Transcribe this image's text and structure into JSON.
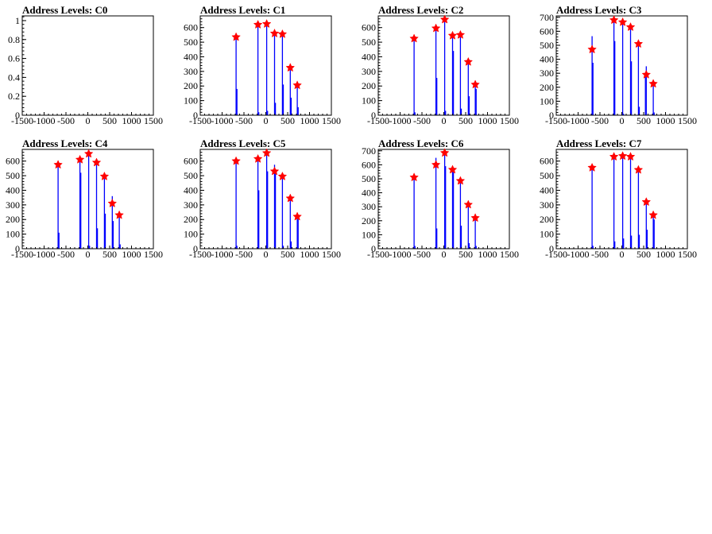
{
  "chart_data": [
    {
      "type": "bar",
      "title": "Address Levels: C0",
      "xlim": [
        -1500,
        1500
      ],
      "ylim": [
        0,
        1.05
      ],
      "x_ticks": [
        -1500,
        -1000,
        -500,
        0,
        500,
        1000,
        1500
      ],
      "x_tick_labels": [
        "-1500",
        "-1000",
        "-500",
        "0",
        "500",
        "1000",
        "1500"
      ],
      "y_ticks": [
        0,
        0.2,
        0.4,
        0.6,
        0.8,
        1
      ],
      "y_tick_labels": [
        "0",
        "0.2",
        "0.4",
        "0.6",
        "0.8",
        "1"
      ],
      "histogram": [],
      "peaks": []
    },
    {
      "type": "bar",
      "title": "Address Levels: C1",
      "xlim": [
        -1500,
        1500
      ],
      "ylim": [
        0,
        680
      ],
      "x_ticks": [
        -1500,
        -1000,
        -500,
        0,
        500,
        1000,
        1500
      ],
      "x_tick_labels": [
        "-1500",
        "-1000",
        "-500",
        "0",
        "500",
        "1000",
        "1500"
      ],
      "y_ticks": [
        0,
        100,
        200,
        300,
        400,
        500,
        600
      ],
      "y_tick_labels": [
        "0",
        "100",
        "200",
        "300",
        "400",
        "500",
        "600"
      ],
      "histogram": [
        {
          "x": -680,
          "y": 540
        },
        {
          "x": -660,
          "y": 180
        },
        {
          "x": -180,
          "y": 620
        },
        {
          "x": -160,
          "y": 20
        },
        {
          "x": 20,
          "y": 625
        },
        {
          "x": 40,
          "y": 30
        },
        {
          "x": 200,
          "y": 560
        },
        {
          "x": 220,
          "y": 85
        },
        {
          "x": 380,
          "y": 560
        },
        {
          "x": 400,
          "y": 210
        },
        {
          "x": 560,
          "y": 330
        },
        {
          "x": 580,
          "y": 120
        },
        {
          "x": 720,
          "y": 210
        },
        {
          "x": 740,
          "y": 55
        }
      ],
      "peaks": [
        {
          "x": -680,
          "y": 535
        },
        {
          "x": -180,
          "y": 620
        },
        {
          "x": 20,
          "y": 625
        },
        {
          "x": 200,
          "y": 560
        },
        {
          "x": 380,
          "y": 555
        },
        {
          "x": 560,
          "y": 325
        },
        {
          "x": 720,
          "y": 205
        }
      ]
    },
    {
      "type": "bar",
      "title": "Address Levels: C2",
      "xlim": [
        -1500,
        1500
      ],
      "ylim": [
        0,
        680
      ],
      "x_ticks": [
        -1500,
        -1000,
        -500,
        0,
        500,
        1000,
        1500
      ],
      "x_tick_labels": [
        "-1500",
        "-1000",
        "-500",
        "0",
        "500",
        "1000",
        "1500"
      ],
      "y_ticks": [
        0,
        100,
        200,
        300,
        400,
        500,
        600
      ],
      "y_tick_labels": [
        "0",
        "100",
        "200",
        "300",
        "400",
        "500",
        "600"
      ],
      "histogram": [
        {
          "x": -680,
          "y": 530
        },
        {
          "x": -660,
          "y": 20
        },
        {
          "x": -180,
          "y": 600
        },
        {
          "x": -160,
          "y": 255
        },
        {
          "x": 20,
          "y": 660
        },
        {
          "x": 40,
          "y": 30
        },
        {
          "x": 200,
          "y": 550
        },
        {
          "x": 220,
          "y": 440
        },
        {
          "x": 380,
          "y": 555
        },
        {
          "x": 400,
          "y": 45
        },
        {
          "x": 560,
          "y": 370
        },
        {
          "x": 580,
          "y": 130
        },
        {
          "x": 720,
          "y": 210
        },
        {
          "x": 740,
          "y": 180
        }
      ],
      "peaks": [
        {
          "x": -680,
          "y": 525
        },
        {
          "x": -180,
          "y": 595
        },
        {
          "x": 20,
          "y": 655
        },
        {
          "x": 200,
          "y": 545
        },
        {
          "x": 380,
          "y": 550
        },
        {
          "x": 560,
          "y": 365
        },
        {
          "x": 720,
          "y": 210
        }
      ]
    },
    {
      "type": "bar",
      "title": "Address Levels: C3",
      "xlim": [
        -1500,
        1500
      ],
      "ylim": [
        0,
        710
      ],
      "x_ticks": [
        -1500,
        -1000,
        -500,
        0,
        500,
        1000,
        1500
      ],
      "x_tick_labels": [
        "-1500",
        "-1000",
        "-500",
        "0",
        "500",
        "1000",
        "1500"
      ],
      "y_ticks": [
        0,
        100,
        200,
        300,
        400,
        500,
        600,
        700
      ],
      "y_tick_labels": [
        "0",
        "100",
        "200",
        "300",
        "400",
        "500",
        "600",
        "700"
      ],
      "histogram": [
        {
          "x": -680,
          "y": 565
        },
        {
          "x": -660,
          "y": 375
        },
        {
          "x": -180,
          "y": 670
        },
        {
          "x": -160,
          "y": 530
        },
        {
          "x": 20,
          "y": 665
        },
        {
          "x": 40,
          "y": 10
        },
        {
          "x": 200,
          "y": 620
        },
        {
          "x": 220,
          "y": 385
        },
        {
          "x": 380,
          "y": 530
        },
        {
          "x": 400,
          "y": 60
        },
        {
          "x": 540,
          "y": 290
        },
        {
          "x": 560,
          "y": 350
        },
        {
          "x": 720,
          "y": 230
        },
        {
          "x": 740,
          "y": 20
        }
      ],
      "peaks": [
        {
          "x": -680,
          "y": 470
        },
        {
          "x": -180,
          "y": 680
        },
        {
          "x": 20,
          "y": 665
        },
        {
          "x": 200,
          "y": 630
        },
        {
          "x": 380,
          "y": 510
        },
        {
          "x": 560,
          "y": 290
        },
        {
          "x": 720,
          "y": 225
        }
      ]
    },
    {
      "type": "bar",
      "title": "Address Levels: C4",
      "xlim": [
        -1500,
        1500
      ],
      "ylim": [
        0,
        680
      ],
      "x_ticks": [
        -1500,
        -1000,
        -500,
        0,
        500,
        1000,
        1500
      ],
      "x_tick_labels": [
        "-1500",
        "-1000",
        "-500",
        "0",
        "500",
        "1000",
        "1500"
      ],
      "y_ticks": [
        0,
        100,
        200,
        300,
        400,
        500,
        600
      ],
      "y_tick_labels": [
        "0",
        "100",
        "200",
        "300",
        "400",
        "500",
        "600"
      ],
      "histogram": [
        {
          "x": -680,
          "y": 570
        },
        {
          "x": -660,
          "y": 110
        },
        {
          "x": -180,
          "y": 620
        },
        {
          "x": -160,
          "y": 520
        },
        {
          "x": 20,
          "y": 650
        },
        {
          "x": 40,
          "y": 20
        },
        {
          "x": 200,
          "y": 580
        },
        {
          "x": 220,
          "y": 140
        },
        {
          "x": 380,
          "y": 490
        },
        {
          "x": 400,
          "y": 240
        },
        {
          "x": 560,
          "y": 360
        },
        {
          "x": 580,
          "y": 190
        },
        {
          "x": 720,
          "y": 220
        },
        {
          "x": 740,
          "y": 30
        }
      ],
      "peaks": [
        {
          "x": -680,
          "y": 575
        },
        {
          "x": -180,
          "y": 610
        },
        {
          "x": 20,
          "y": 650
        },
        {
          "x": 200,
          "y": 590
        },
        {
          "x": 380,
          "y": 495
        },
        {
          "x": 560,
          "y": 310
        },
        {
          "x": 720,
          "y": 230
        }
      ]
    },
    {
      "type": "bar",
      "title": "Address Levels: C5",
      "xlim": [
        -1500,
        1500
      ],
      "ylim": [
        0,
        680
      ],
      "x_ticks": [
        -1500,
        -1000,
        -500,
        0,
        500,
        1000,
        1500
      ],
      "x_tick_labels": [
        "-1500",
        "-1000",
        "-500",
        "0",
        "500",
        "1000",
        "1500"
      ],
      "y_ticks": [
        0,
        100,
        200,
        300,
        400,
        500,
        600
      ],
      "y_tick_labels": [
        "0",
        "100",
        "200",
        "300",
        "400",
        "500",
        "600"
      ],
      "histogram": [
        {
          "x": -680,
          "y": 600
        },
        {
          "x": -660,
          "y": 20
        },
        {
          "x": -180,
          "y": 620
        },
        {
          "x": -160,
          "y": 400
        },
        {
          "x": 20,
          "y": 660
        },
        {
          "x": 40,
          "y": 530
        },
        {
          "x": 200,
          "y": 575
        },
        {
          "x": 220,
          "y": 530
        },
        {
          "x": 380,
          "y": 500
        },
        {
          "x": 400,
          "y": 20
        },
        {
          "x": 560,
          "y": 345
        },
        {
          "x": 580,
          "y": 50
        },
        {
          "x": 720,
          "y": 220
        },
        {
          "x": 740,
          "y": 200
        }
      ],
      "peaks": [
        {
          "x": -680,
          "y": 600
        },
        {
          "x": -180,
          "y": 615
        },
        {
          "x": 20,
          "y": 655
        },
        {
          "x": 200,
          "y": 530
        },
        {
          "x": 380,
          "y": 495
        },
        {
          "x": 560,
          "y": 345
        },
        {
          "x": 720,
          "y": 220
        }
      ]
    },
    {
      "type": "bar",
      "title": "Address Levels: C6",
      "xlim": [
        -1500,
        1500
      ],
      "ylim": [
        0,
        710
      ],
      "x_ticks": [
        -1500,
        -1000,
        -500,
        0,
        500,
        1000,
        1500
      ],
      "x_tick_labels": [
        "-1500",
        "-1000",
        "-500",
        "0",
        "500",
        "1000",
        "1500"
      ],
      "y_ticks": [
        0,
        100,
        200,
        300,
        400,
        500,
        600,
        700
      ],
      "y_tick_labels": [
        "0",
        "100",
        "200",
        "300",
        "400",
        "500",
        "600",
        "700"
      ],
      "histogram": [
        {
          "x": -680,
          "y": 510
        },
        {
          "x": -660,
          "y": 20
        },
        {
          "x": -180,
          "y": 650
        },
        {
          "x": -160,
          "y": 145
        },
        {
          "x": 20,
          "y": 700
        },
        {
          "x": 40,
          "y": 590
        },
        {
          "x": 200,
          "y": 570
        },
        {
          "x": 220,
          "y": 550
        },
        {
          "x": 380,
          "y": 490
        },
        {
          "x": 400,
          "y": 165
        },
        {
          "x": 560,
          "y": 330
        },
        {
          "x": 580,
          "y": 40
        },
        {
          "x": 720,
          "y": 220
        },
        {
          "x": 740,
          "y": 20
        }
      ],
      "peaks": [
        {
          "x": -680,
          "y": 510
        },
        {
          "x": -180,
          "y": 600
        },
        {
          "x": 20,
          "y": 685
        },
        {
          "x": 200,
          "y": 565
        },
        {
          "x": 380,
          "y": 485
        },
        {
          "x": 560,
          "y": 315
        },
        {
          "x": 720,
          "y": 220
        }
      ]
    },
    {
      "type": "bar",
      "title": "Address Levels: C7",
      "xlim": [
        -1500,
        1500
      ],
      "ylim": [
        0,
        680
      ],
      "x_ticks": [
        -1500,
        -1000,
        -500,
        0,
        500,
        1000,
        1500
      ],
      "x_tick_labels": [
        "-1500",
        "-1000",
        "-500",
        "0",
        "500",
        "1000",
        "1500"
      ],
      "y_ticks": [
        0,
        100,
        200,
        300,
        400,
        500,
        600
      ],
      "y_tick_labels": [
        "0",
        "100",
        "200",
        "300",
        "400",
        "500",
        "600"
      ],
      "histogram": [
        {
          "x": -680,
          "y": 560
        },
        {
          "x": -660,
          "y": 20
        },
        {
          "x": -180,
          "y": 640
        },
        {
          "x": -160,
          "y": 50
        },
        {
          "x": 20,
          "y": 640
        },
        {
          "x": 40,
          "y": 70
        },
        {
          "x": 200,
          "y": 640
        },
        {
          "x": 220,
          "y": 90
        },
        {
          "x": 380,
          "y": 540
        },
        {
          "x": 400,
          "y": 95
        },
        {
          "x": 560,
          "y": 330
        },
        {
          "x": 580,
          "y": 130
        },
        {
          "x": 720,
          "y": 230
        },
        {
          "x": 740,
          "y": 200
        }
      ],
      "peaks": [
        {
          "x": -680,
          "y": 555
        },
        {
          "x": -180,
          "y": 630
        },
        {
          "x": 20,
          "y": 635
        },
        {
          "x": 200,
          "y": 630
        },
        {
          "x": 380,
          "y": 540
        },
        {
          "x": 560,
          "y": 320
        },
        {
          "x": 720,
          "y": 230
        }
      ]
    }
  ],
  "colors": {
    "histogram": "#0000ff",
    "peak_marker": "#ff0000",
    "axes": "#000000"
  }
}
